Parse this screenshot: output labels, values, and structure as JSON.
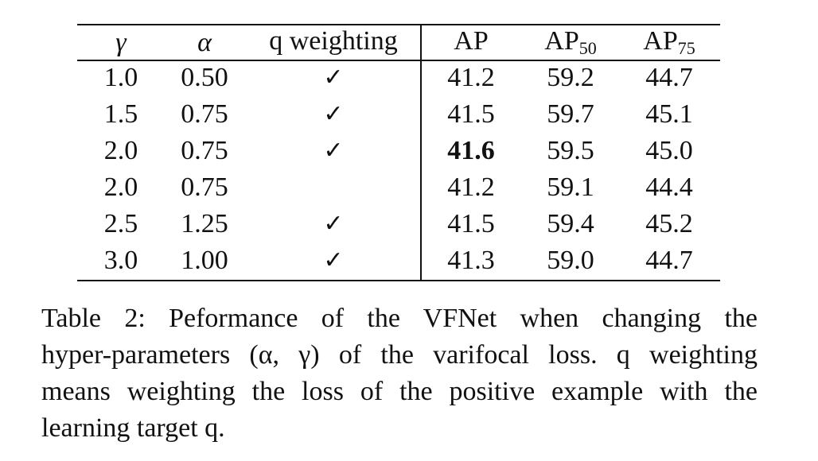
{
  "table": {
    "headers": {
      "gamma": "γ",
      "alpha": "α",
      "q_weighting": "q weighting",
      "ap": "AP",
      "ap50_base": "AP",
      "ap50_sub": "50",
      "ap75_base": "AP",
      "ap75_sub": "75"
    },
    "rows": [
      {
        "gamma": "1.0",
        "alpha": "0.50",
        "check": "✓",
        "ap": "41.2",
        "ap50": "59.2",
        "ap75": "44.7"
      },
      {
        "gamma": "1.5",
        "alpha": "0.75",
        "check": "✓",
        "ap": "41.5",
        "ap50": "59.7",
        "ap75": "45.1"
      },
      {
        "gamma": "2.0",
        "alpha": "0.75",
        "check": "✓",
        "ap": "41.6",
        "ap50": "59.5",
        "ap75": "45.0"
      },
      {
        "gamma": "2.0",
        "alpha": "0.75",
        "check": "",
        "ap": "41.2",
        "ap50": "59.1",
        "ap75": "44.4"
      },
      {
        "gamma": "2.5",
        "alpha": "1.25",
        "check": "✓",
        "ap": "41.5",
        "ap50": "59.4",
        "ap75": "45.2"
      },
      {
        "gamma": "3.0",
        "alpha": "1.00",
        "check": "✓",
        "ap": "41.3",
        "ap50": "59.0",
        "ap75": "44.7"
      }
    ],
    "bold_row_ap": 2
  },
  "caption": {
    "lines": [
      "Table 2:  Peformance of the VFNet when changing the",
      "hyper-parameters (α, γ) of the varifocal loss.  q weighting",
      "means weighting the loss of the positive example with the",
      "learning target q."
    ]
  }
}
